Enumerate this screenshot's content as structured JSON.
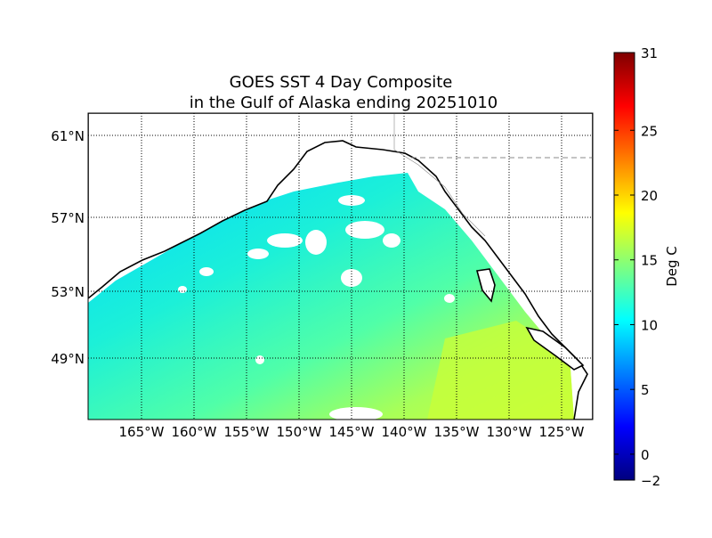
{
  "chart_data": {
    "type": "heatmap",
    "title_line1": "GOES SST 4 Day Composite",
    "title_line2": "in the Gulf of Alaska ending 20251010",
    "lat_labels": [
      "61°N",
      "57°N",
      "53°N",
      "49°N"
    ],
    "lat_values": [
      61,
      57,
      53,
      49
    ],
    "lon_labels": [
      "165°W",
      "160°W",
      "155°W",
      "150°W",
      "145°W",
      "140°W",
      "135°W",
      "130°W",
      "125°W"
    ],
    "lon_values": [
      -165,
      -160,
      -155,
      -150,
      -145,
      -140,
      -135,
      -130,
      -125
    ],
    "grid": true,
    "colorbar": {
      "label": "Deg C",
      "range": [
        -2,
        31
      ],
      "ticks": [
        31,
        25,
        20,
        15,
        10,
        5,
        0,
        -2
      ],
      "tick_labels": [
        "31",
        "25",
        "20",
        "15",
        "10",
        "5",
        "0",
        "−2"
      ],
      "colormap": [
        "#00007f",
        "#0000ff",
        "#007fff",
        "#00ffff",
        "#7fff7f",
        "#ffff00",
        "#ff7f00",
        "#ff0000",
        "#7f0000"
      ]
    },
    "sst_summary": {
      "northwest_gulf": 10,
      "central_gulf": 12,
      "southeast": 17
    }
  }
}
